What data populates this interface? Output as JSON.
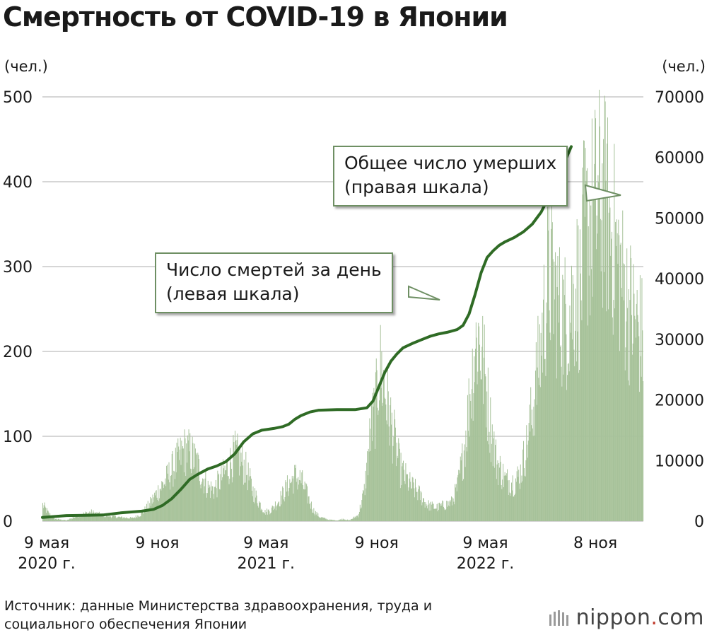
{
  "title": "Смертность от COVID-19 в Японии",
  "left_unit": "(чел.)",
  "right_unit": "(чел.)",
  "callout_cumulative": {
    "line1": "Общее число умерших",
    "line2": "(правая шкала)"
  },
  "callout_daily": {
    "line1": "Число смертей за день",
    "line2": "(левая шкала)"
  },
  "source": {
    "line1": "Источник: данные Министерства здравоохранения, труда и",
    "line2": "социального обеспечения Японии"
  },
  "logo": {
    "name": "nippon",
    "dot": ".",
    "suffix": "com"
  },
  "colors": {
    "bars": "#a7c29a",
    "line": "#2f6b25",
    "grid": "#c8c8c8"
  },
  "chart_data": {
    "type": "bar+line",
    "title": "Смертность от COVID-19 в Японии",
    "x_axis": {
      "labels": [
        {
          "line1": "9 мая",
          "line2": "2020 г.",
          "day": 0
        },
        {
          "line1": "9 ноя",
          "line2": "",
          "day": 184
        },
        {
          "line1": "9 мая",
          "line2": "2021 г.",
          "day": 365
        },
        {
          "line1": "9 ноя",
          "line2": "",
          "day": 549
        },
        {
          "line1": "9 мая",
          "line2": "2022 г.",
          "day": 730
        },
        {
          "line1": "8 ноя",
          "line2": "",
          "day": 913
        }
      ],
      "range_days": [
        0,
        1000
      ]
    },
    "left_axis": {
      "label": "(чел.)",
      "ylim": [
        0,
        500
      ],
      "ticks": [
        0,
        100,
        200,
        300,
        400,
        500
      ]
    },
    "right_axis": {
      "label": "(чел.)",
      "ylim": [
        0,
        70000
      ],
      "ticks": [
        0,
        10000,
        20000,
        30000,
        40000,
        50000,
        60000,
        70000
      ]
    },
    "series": [
      {
        "name": "Число смертей за день",
        "axis": "left",
        "kind": "bar",
        "envelope_points": [
          [
            0,
            22
          ],
          [
            10,
            10
          ],
          [
            20,
            3
          ],
          [
            40,
            1
          ],
          [
            60,
            8
          ],
          [
            80,
            12
          ],
          [
            100,
            8
          ],
          [
            130,
            5
          ],
          [
            150,
            4
          ],
          [
            165,
            10
          ],
          [
            180,
            25
          ],
          [
            190,
            38
          ],
          [
            205,
            55
          ],
          [
            220,
            75
          ],
          [
            235,
            95
          ],
          [
            245,
            92
          ],
          [
            255,
            80
          ],
          [
            265,
            60
          ],
          [
            275,
            45
          ],
          [
            285,
            42
          ],
          [
            295,
            55
          ],
          [
            310,
            75
          ],
          [
            320,
            90
          ],
          [
            330,
            82
          ],
          [
            340,
            65
          ],
          [
            350,
            40
          ],
          [
            360,
            25
          ],
          [
            370,
            12
          ],
          [
            380,
            15
          ],
          [
            395,
            30
          ],
          [
            410,
            50
          ],
          [
            420,
            60
          ],
          [
            430,
            55
          ],
          [
            440,
            35
          ],
          [
            450,
            15
          ],
          [
            460,
            6
          ],
          [
            475,
            2
          ],
          [
            490,
            1
          ],
          [
            500,
            3
          ],
          [
            510,
            1
          ],
          [
            525,
            8
          ],
          [
            535,
            40
          ],
          [
            545,
            115
          ],
          [
            555,
            160
          ],
          [
            560,
            210
          ],
          [
            565,
            195
          ],
          [
            575,
            150
          ],
          [
            585,
            110
          ],
          [
            595,
            70
          ],
          [
            610,
            50
          ],
          [
            625,
            38
          ],
          [
            640,
            22
          ],
          [
            655,
            18
          ],
          [
            670,
            22
          ],
          [
            680,
            25
          ],
          [
            690,
            45
          ],
          [
            700,
            90
          ],
          [
            710,
            160
          ],
          [
            718,
            225
          ],
          [
            725,
            250
          ],
          [
            735,
            200
          ],
          [
            745,
            130
          ],
          [
            755,
            80
          ],
          [
            770,
            55
          ],
          [
            785,
            52
          ],
          [
            795,
            65
          ],
          [
            805,
            100
          ],
          [
            815,
            150
          ],
          [
            825,
            210
          ],
          [
            835,
            280
          ],
          [
            840,
            320
          ],
          [
            845,
            330
          ],
          [
            852,
            310
          ],
          [
            860,
            280
          ],
          [
            870,
            270
          ],
          [
            880,
            290
          ],
          [
            890,
            320
          ],
          [
            895,
            300
          ],
          [
            900,
            380
          ],
          [
            910,
            400
          ],
          [
            920,
            420
          ],
          [
            930,
            440
          ],
          [
            950,
            380
          ],
          [
            970,
            300
          ],
          [
            990,
            260
          ],
          [
            1000,
            240
          ]
        ]
      },
      {
        "name": "Общее число умерших",
        "axis": "right",
        "kind": "line",
        "points": [
          [
            0,
            620
          ],
          [
            40,
            920
          ],
          [
            70,
            960
          ],
          [
            100,
            1020
          ],
          [
            130,
            1360
          ],
          [
            165,
            1640
          ],
          [
            185,
            1950
          ],
          [
            200,
            2600
          ],
          [
            215,
            3700
          ],
          [
            230,
            5200
          ],
          [
            245,
            6900
          ],
          [
            260,
            7800
          ],
          [
            275,
            8600
          ],
          [
            290,
            9100
          ],
          [
            305,
            9800
          ],
          [
            320,
            11100
          ],
          [
            335,
            13100
          ],
          [
            350,
            14400
          ],
          [
            365,
            15000
          ],
          [
            385,
            15300
          ],
          [
            400,
            15600
          ],
          [
            410,
            16000
          ],
          [
            420,
            16800
          ],
          [
            430,
            17400
          ],
          [
            445,
            18000
          ],
          [
            460,
            18300
          ],
          [
            490,
            18400
          ],
          [
            520,
            18400
          ],
          [
            540,
            18700
          ],
          [
            550,
            19800
          ],
          [
            560,
            22200
          ],
          [
            570,
            24600
          ],
          [
            580,
            26400
          ],
          [
            590,
            27600
          ],
          [
            600,
            28600
          ],
          [
            615,
            29300
          ],
          [
            630,
            29900
          ],
          [
            645,
            30500
          ],
          [
            660,
            30900
          ],
          [
            675,
            31200
          ],
          [
            690,
            31600
          ],
          [
            700,
            32300
          ],
          [
            710,
            34200
          ],
          [
            720,
            37400
          ],
          [
            730,
            41000
          ],
          [
            740,
            43500
          ],
          [
            750,
            44600
          ],
          [
            760,
            45500
          ],
          [
            770,
            46100
          ],
          [
            785,
            46800
          ],
          [
            800,
            47700
          ],
          [
            815,
            49000
          ],
          [
            830,
            51000
          ],
          [
            845,
            54000
          ],
          [
            860,
            57700
          ],
          [
            870,
            59500
          ],
          [
            880,
            61800
          ]
        ]
      }
    ]
  }
}
